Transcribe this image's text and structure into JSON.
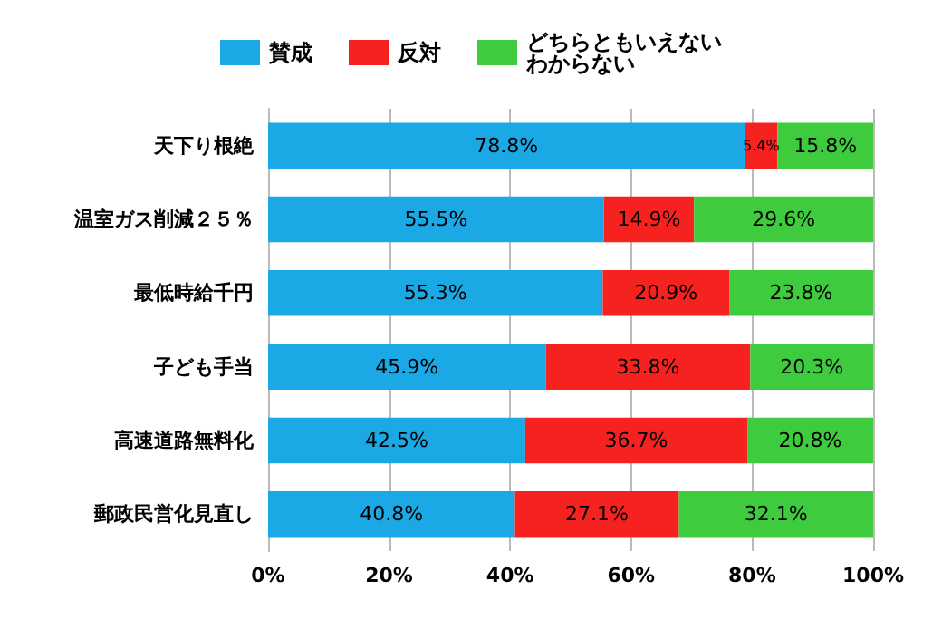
{
  "chart_data": {
    "type": "bar",
    "orientation": "horizontal",
    "stacked": true,
    "categories": [
      "天下り根絶",
      "温室ガス削減２５％",
      "最低時給千円",
      "子ども手当",
      "高速道路無料化",
      "郵政民営化見直し"
    ],
    "series": [
      {
        "name": "賛成",
        "color": "#1ba9e6",
        "values": [
          78.8,
          55.5,
          55.3,
          45.9,
          42.5,
          40.8
        ],
        "value_labels": [
          "78.8%",
          "55.5%",
          "55.3%",
          "45.9%",
          "42.5%",
          "40.8%"
        ]
      },
      {
        "name": "反対",
        "color": "#f5221f",
        "values": [
          5.4,
          14.9,
          20.9,
          33.8,
          36.7,
          27.1
        ],
        "value_labels": [
          "5.4%",
          "14.9%",
          "20.9%",
          "33.8%",
          "36.7%",
          "27.1%"
        ]
      },
      {
        "name": "どちらともいえないわからない",
        "color": "#3ecb3e",
        "values": [
          15.8,
          29.6,
          23.8,
          20.3,
          20.8,
          32.1
        ],
        "value_labels": [
          "15.8%",
          "29.6%",
          "23.8%",
          "20.3%",
          "20.8%",
          "32.1%"
        ]
      }
    ],
    "xlim": [
      0,
      100
    ],
    "xticks": [
      {
        "value": 0,
        "label": "0%"
      },
      {
        "value": 20,
        "label": "20%"
      },
      {
        "value": 40,
        "label": "40%"
      },
      {
        "value": 60,
        "label": "60%"
      },
      {
        "value": 80,
        "label": "80%"
      },
      {
        "value": 100,
        "label": "100%"
      }
    ],
    "grid": "x",
    "legend": "top"
  }
}
